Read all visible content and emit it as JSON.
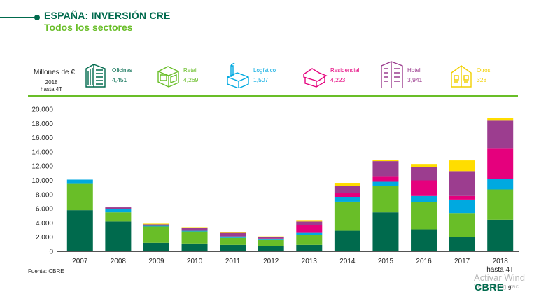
{
  "header": {
    "title": "ESPAÑA: INVERSIÓN CRE",
    "subtitle": "Todos los sectores"
  },
  "legend": {
    "unit_label": "Millones de €",
    "period_line1": "2018",
    "period_line2": "hasta 4T",
    "items": [
      {
        "name": "Oficinas",
        "value": "4,451",
        "color": "#006a4d",
        "icon": "office-building-icon"
      },
      {
        "name": "Retail",
        "value": "4,269",
        "color": "#69be28",
        "icon": "retail-store-icon"
      },
      {
        "name": "Logístico",
        "value": "1,507",
        "color": "#00a9e0",
        "icon": "warehouse-icon"
      },
      {
        "name": "Residencial",
        "value": "4,223",
        "color": "#e5007d",
        "icon": "house-icon"
      },
      {
        "name": "Hotel",
        "value": "3,941",
        "color": "#9c3d8f",
        "icon": "hotel-icon"
      },
      {
        "name": "Otros",
        "value": "328",
        "color": "#ffdd00",
        "icon": "other-building-icon"
      }
    ]
  },
  "chart_data": {
    "type": "bar",
    "stacked": true,
    "title": "ESPAÑA: INVERSIÓN CRE",
    "ylabel": "Millones de €",
    "ylim": [
      0,
      20000
    ],
    "yticks": [
      "0",
      "2.000",
      "4.000",
      "6.000",
      "8.000",
      "10.000",
      "12.000",
      "14.000",
      "16.000",
      "18.000",
      "20.000"
    ],
    "categories": [
      "2007",
      "2008",
      "2009",
      "2010",
      "2011",
      "2012",
      "2013",
      "2014",
      "2015",
      "2016",
      "2017",
      "2018"
    ],
    "category_sublabels": [
      "",
      "",
      "",
      "",
      "",
      "",
      "",
      "",
      "",
      "",
      "",
      "hasta 4T"
    ],
    "series": [
      {
        "name": "Oficinas",
        "color": "#006a4d",
        "values": [
          5800,
          4200,
          1200,
          1100,
          900,
          700,
          900,
          2900,
          5500,
          3100,
          2000,
          4451
        ]
      },
      {
        "name": "Retail",
        "color": "#69be28",
        "values": [
          3700,
          1300,
          2300,
          1700,
          1000,
          900,
          1400,
          4100,
          3700,
          3800,
          3400,
          4269
        ]
      },
      {
        "name": "Logístico",
        "color": "#00a9e0",
        "values": [
          600,
          500,
          100,
          100,
          200,
          100,
          300,
          600,
          600,
          900,
          1900,
          1507
        ]
      },
      {
        "name": "Residencial",
        "color": "#e5007d",
        "values": [
          0,
          0,
          0,
          0,
          0,
          100,
          1100,
          600,
          700,
          2200,
          500,
          4223
        ]
      },
      {
        "name": "Hotel",
        "color": "#9c3d8f",
        "values": [
          0,
          200,
          200,
          400,
          500,
          200,
          500,
          1000,
          2200,
          1900,
          3500,
          3941
        ]
      },
      {
        "name": "Otros",
        "color": "#ffdd00",
        "values": [
          0,
          0,
          100,
          100,
          100,
          100,
          200,
          400,
          200,
          400,
          1500,
          328
        ]
      }
    ],
    "grid": false,
    "legend_position": "top"
  },
  "footer": {
    "source": "Fuente: CBRE",
    "watermark_line1": "Activar Wind",
    "watermark_line2": "Ve a Configurac",
    "logo": "CBRE",
    "page": "9"
  }
}
